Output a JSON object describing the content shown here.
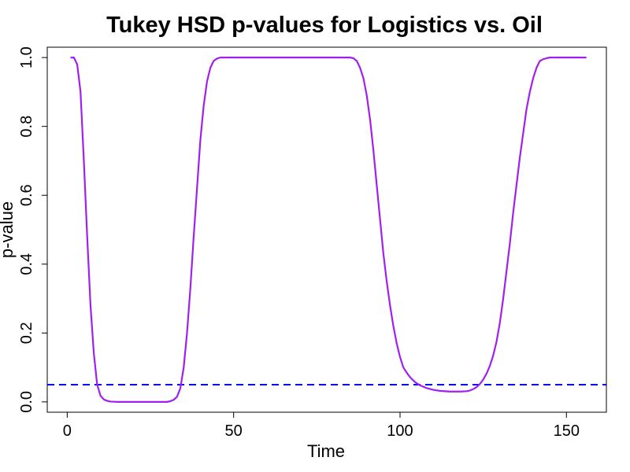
{
  "chart_data": {
    "type": "line",
    "title": "Tukey HSD p-values for Logistics vs. Oil",
    "xlabel": "Time",
    "ylabel": "p-value",
    "xlim": [
      -6,
      162
    ],
    "ylim": [
      -0.03,
      1.03
    ],
    "x_ticks": [
      0,
      50,
      100,
      150
    ],
    "y_ticks": [
      0.0,
      0.2,
      0.4,
      0.6,
      0.8,
      1.0
    ],
    "grid": false,
    "series": [
      {
        "color": "#A020F0",
        "x": [
          1,
          2,
          3,
          4,
          5,
          6,
          7,
          8,
          9,
          10,
          11,
          12,
          13,
          15,
          20,
          25,
          30,
          31,
          32,
          33,
          34,
          35,
          36,
          37,
          38,
          39,
          40,
          41,
          42,
          43,
          44,
          45,
          46,
          50,
          60,
          70,
          80,
          85,
          86,
          87,
          88,
          89,
          90,
          91,
          92,
          93,
          94,
          95,
          96,
          97,
          98,
          99,
          100,
          101,
          102,
          103,
          104,
          105,
          106,
          108,
          110,
          112,
          115,
          118,
          120,
          121,
          122,
          123,
          124,
          125,
          126,
          127,
          128,
          129,
          130,
          131,
          132,
          133,
          134,
          135,
          136,
          137,
          138,
          139,
          140,
          141,
          142,
          143,
          144,
          145,
          146,
          150,
          155,
          156
        ],
        "y": [
          1.0,
          1.0,
          0.98,
          0.9,
          0.7,
          0.48,
          0.28,
          0.14,
          0.05,
          0.018,
          0.007,
          0.003,
          0.001,
          0.0,
          0.0,
          0.0,
          0.0,
          0.002,
          0.006,
          0.015,
          0.04,
          0.1,
          0.2,
          0.33,
          0.48,
          0.62,
          0.76,
          0.86,
          0.93,
          0.97,
          0.99,
          0.997,
          1.0,
          1.0,
          1.0,
          1.0,
          1.0,
          1.0,
          0.998,
          0.99,
          0.97,
          0.94,
          0.89,
          0.82,
          0.73,
          0.63,
          0.53,
          0.43,
          0.35,
          0.28,
          0.22,
          0.17,
          0.13,
          0.1,
          0.085,
          0.072,
          0.062,
          0.054,
          0.048,
          0.04,
          0.035,
          0.032,
          0.03,
          0.03,
          0.031,
          0.033,
          0.037,
          0.043,
          0.052,
          0.065,
          0.082,
          0.105,
          0.135,
          0.175,
          0.23,
          0.3,
          0.38,
          0.46,
          0.55,
          0.63,
          0.71,
          0.78,
          0.85,
          0.9,
          0.94,
          0.97,
          0.99,
          0.995,
          0.998,
          1.0,
          1.0,
          1.0,
          1.0,
          1.0
        ]
      }
    ],
    "reference_line": {
      "y": 0.05,
      "color": "#0000FF",
      "style": "dashed"
    }
  }
}
